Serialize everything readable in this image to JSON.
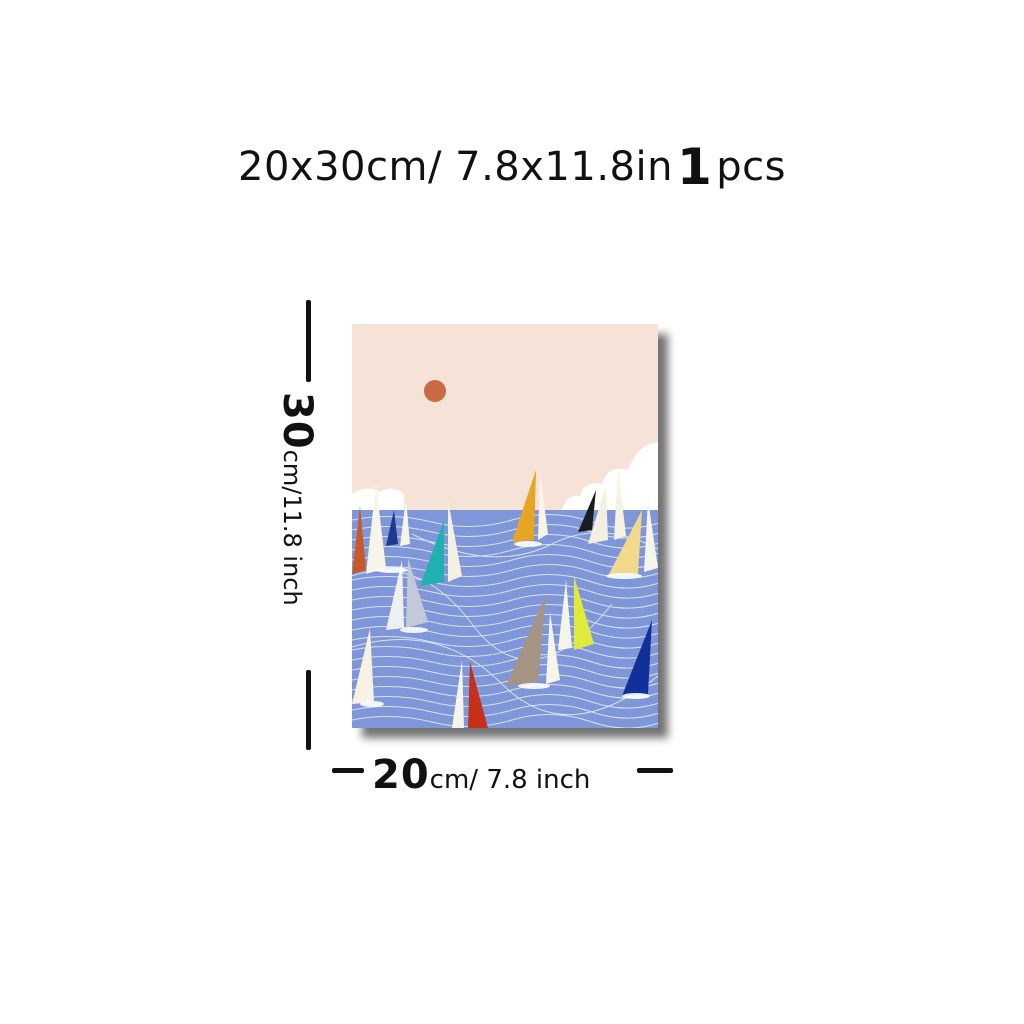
{
  "header": {
    "size_text": "20x30cm/ 7.8x11.8in",
    "qty_number": "1",
    "qty_unit": "pcs"
  },
  "height_label": {
    "value": "30",
    "unit": "cm/11.8 inch"
  },
  "width_label": {
    "value": "20",
    "unit": "cm/ 7.8 inch"
  },
  "artwork": {
    "subject": "sailboats-on-waves",
    "colors": {
      "sky": "#f6e2d6",
      "sun": "#c86a44",
      "sea": "#7f97d8",
      "wave_lines": "#e8eefb"
    }
  }
}
